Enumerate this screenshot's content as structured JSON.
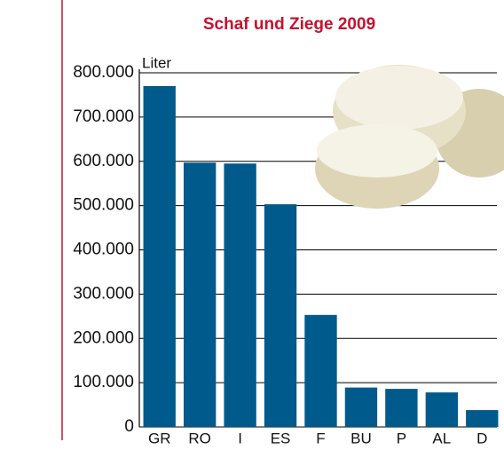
{
  "chart_data": {
    "type": "bar",
    "title": "Schaf und Ziege 2009",
    "y_label": "Liter",
    "categories": [
      "GR",
      "RO",
      "I",
      "ES",
      "F",
      "BU",
      "P",
      "AL",
      "D"
    ],
    "values": [
      770000,
      597000,
      595000,
      503000,
      253000,
      89000,
      86000,
      78000,
      38000
    ],
    "color": "#005a8c",
    "ylim": [
      0,
      800000
    ],
    "yticks": [
      0,
      {
        "value": 100000,
        "label": "100.000"
      },
      {
        "value": 200000,
        "label": "200.000"
      },
      {
        "value": 300000,
        "label": "300.000"
      },
      {
        "value": 400000,
        "label": "400.000"
      },
      {
        "value": 500000,
        "label": "500.000"
      },
      {
        "value": 600000,
        "label": "600.000"
      },
      {
        "value": 700000,
        "label": "700.000"
      },
      {
        "value": 800000,
        "label": "800.000"
      }
    ],
    "grid": true
  }
}
